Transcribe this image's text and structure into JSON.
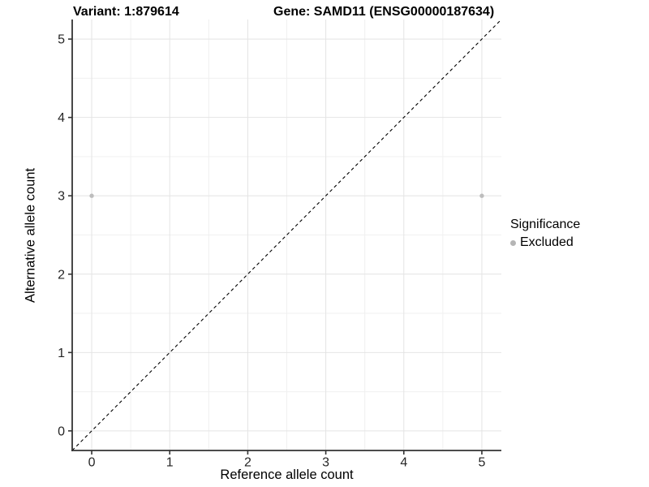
{
  "titles": {
    "variant": "Variant: 1:879614",
    "gene": "Gene: SAMD11 (ENSG00000187634)"
  },
  "chart_data": {
    "type": "scatter",
    "title": "Variant: 1:879614   Gene: SAMD11 (ENSG00000187634)",
    "xlabel": "Reference allele count",
    "ylabel": "Alternative allele count",
    "xlim": [
      -0.25,
      5.25
    ],
    "ylim": [
      -0.25,
      5.25
    ],
    "x_ticks": [
      0,
      1,
      2,
      3,
      4,
      5
    ],
    "y_ticks": [
      0,
      1,
      2,
      3,
      4,
      5
    ],
    "minor_grid_ticks": [
      0.5,
      1.5,
      2.5,
      3.5,
      4.5
    ],
    "grid": "major and minor, light grey on white",
    "reference_line": {
      "type": "identity y=x",
      "slope": 1,
      "intercept": 0,
      "style": "dashed",
      "color": "#000000"
    },
    "series": [
      {
        "name": "Excluded",
        "color": "#bdbdbd",
        "points": [
          {
            "x": 0,
            "y": 3
          },
          {
            "x": 5,
            "y": 3
          }
        ]
      }
    ],
    "legend": {
      "title": "Significance",
      "position": "right",
      "items": [
        {
          "label": "Excluded",
          "color": "#b5b5b5",
          "marker": "circle"
        }
      ]
    }
  },
  "colors": {
    "background": "#ffffff",
    "grid_major": "#e4e4e4",
    "grid_minor": "#f0f0f0",
    "axis_line": "#333333",
    "tick_text": "#262626",
    "point": "#bdbdbd",
    "dashed_line": "#000000"
  }
}
